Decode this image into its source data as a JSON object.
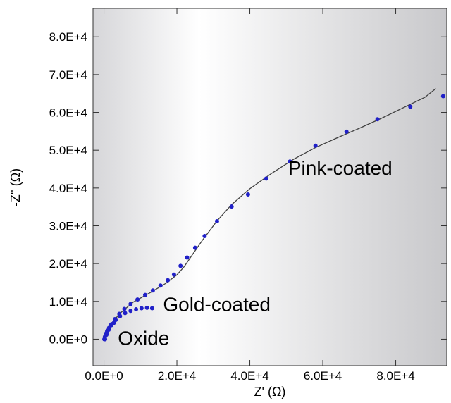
{
  "chart_data": {
    "type": "scatter",
    "title": "",
    "xlabel": "Z' (Ω)",
    "ylabel": "-Z'' (Ω)",
    "xlim": [
      -3000,
      94000
    ],
    "ylim": [
      -7000,
      87500
    ],
    "grid": false,
    "background": "gradient white-to-gray",
    "marker_color": "#2020c8",
    "fit_line_color": "#404040",
    "x_ticks": [
      {
        "value": 0,
        "label": "0.0E+0"
      },
      {
        "value": 20000,
        "label": "2.0E+4"
      },
      {
        "value": 40000,
        "label": "4.0E+4"
      },
      {
        "value": 60000,
        "label": "6.0E+4"
      },
      {
        "value": 80000,
        "label": "8.0E+4"
      }
    ],
    "y_ticks": [
      {
        "value": 0,
        "label": "0.0E+0"
      },
      {
        "value": 10000,
        "label": "1.0E+4"
      },
      {
        "value": 20000,
        "label": "2.0E+4"
      },
      {
        "value": 30000,
        "label": "3.0E+4"
      },
      {
        "value": 40000,
        "label": "4.0E+4"
      },
      {
        "value": 50000,
        "label": "5.0E+4"
      },
      {
        "value": 60000,
        "label": "6.0E+4"
      },
      {
        "value": 70000,
        "label": "7.0E+4"
      },
      {
        "value": 80000,
        "label": "8.0E+4"
      }
    ],
    "series": [
      {
        "name": "Pink-coated",
        "label_anchor": [
          50500,
          43500
        ],
        "points": [
          [
            300,
            0
          ],
          [
            700,
            1200
          ],
          [
            1300,
            2500
          ],
          [
            2000,
            3900
          ],
          [
            3000,
            5300
          ],
          [
            4200,
            6700
          ],
          [
            5600,
            8000
          ],
          [
            7300,
            9300
          ],
          [
            9200,
            10500
          ],
          [
            11300,
            11700
          ],
          [
            13400,
            12900
          ],
          [
            15500,
            14200
          ],
          [
            17500,
            15600
          ],
          [
            19200,
            17100
          ],
          [
            21000,
            19400
          ],
          [
            22800,
            21600
          ],
          [
            25000,
            24200
          ],
          [
            27600,
            27300
          ],
          [
            31000,
            31200
          ],
          [
            35000,
            35100
          ],
          [
            39500,
            38300
          ],
          [
            44500,
            42500
          ],
          [
            51000,
            47000
          ],
          [
            58000,
            51200
          ],
          [
            66500,
            54900
          ],
          [
            75000,
            58200
          ],
          [
            84000,
            61500
          ],
          [
            93000,
            64300
          ]
        ],
        "fit_line": [
          [
            200,
            0
          ],
          [
            1500,
            3000
          ],
          [
            4000,
            6500
          ],
          [
            8000,
            9800
          ],
          [
            13000,
            12500
          ],
          [
            17000,
            14800
          ],
          [
            20000,
            17000
          ],
          [
            22000,
            19200
          ],
          [
            24000,
            22000
          ],
          [
            27000,
            26200
          ],
          [
            31000,
            31300
          ],
          [
            35000,
            35600
          ],
          [
            40000,
            39800
          ],
          [
            46000,
            43900
          ],
          [
            52000,
            47600
          ],
          [
            58000,
            50700
          ],
          [
            64000,
            53300
          ],
          [
            70000,
            55800
          ],
          [
            76000,
            58400
          ],
          [
            82000,
            61200
          ],
          [
            88000,
            64000
          ],
          [
            91000,
            66300
          ]
        ]
      },
      {
        "name": "Gold-coated",
        "label_anchor": [
          16200,
          7400
        ],
        "points": [
          [
            200,
            0
          ],
          [
            400,
            800
          ],
          [
            800,
            1800
          ],
          [
            1400,
            2900
          ],
          [
            2200,
            4000
          ],
          [
            3200,
            5100
          ],
          [
            4400,
            6100
          ],
          [
            5800,
            6900
          ],
          [
            7300,
            7500
          ],
          [
            8800,
            7900
          ],
          [
            10300,
            8200
          ],
          [
            11800,
            8300
          ],
          [
            13200,
            8200
          ]
        ]
      },
      {
        "name": "Oxide",
        "label_anchor": [
          3800,
          -1500
        ],
        "points": [
          [
            100,
            0
          ],
          [
            250,
            600
          ],
          [
            500,
            1400
          ],
          [
            900,
            2200
          ],
          [
            1400,
            3000
          ],
          [
            2000,
            3700
          ],
          [
            2700,
            4300
          ]
        ]
      }
    ]
  }
}
